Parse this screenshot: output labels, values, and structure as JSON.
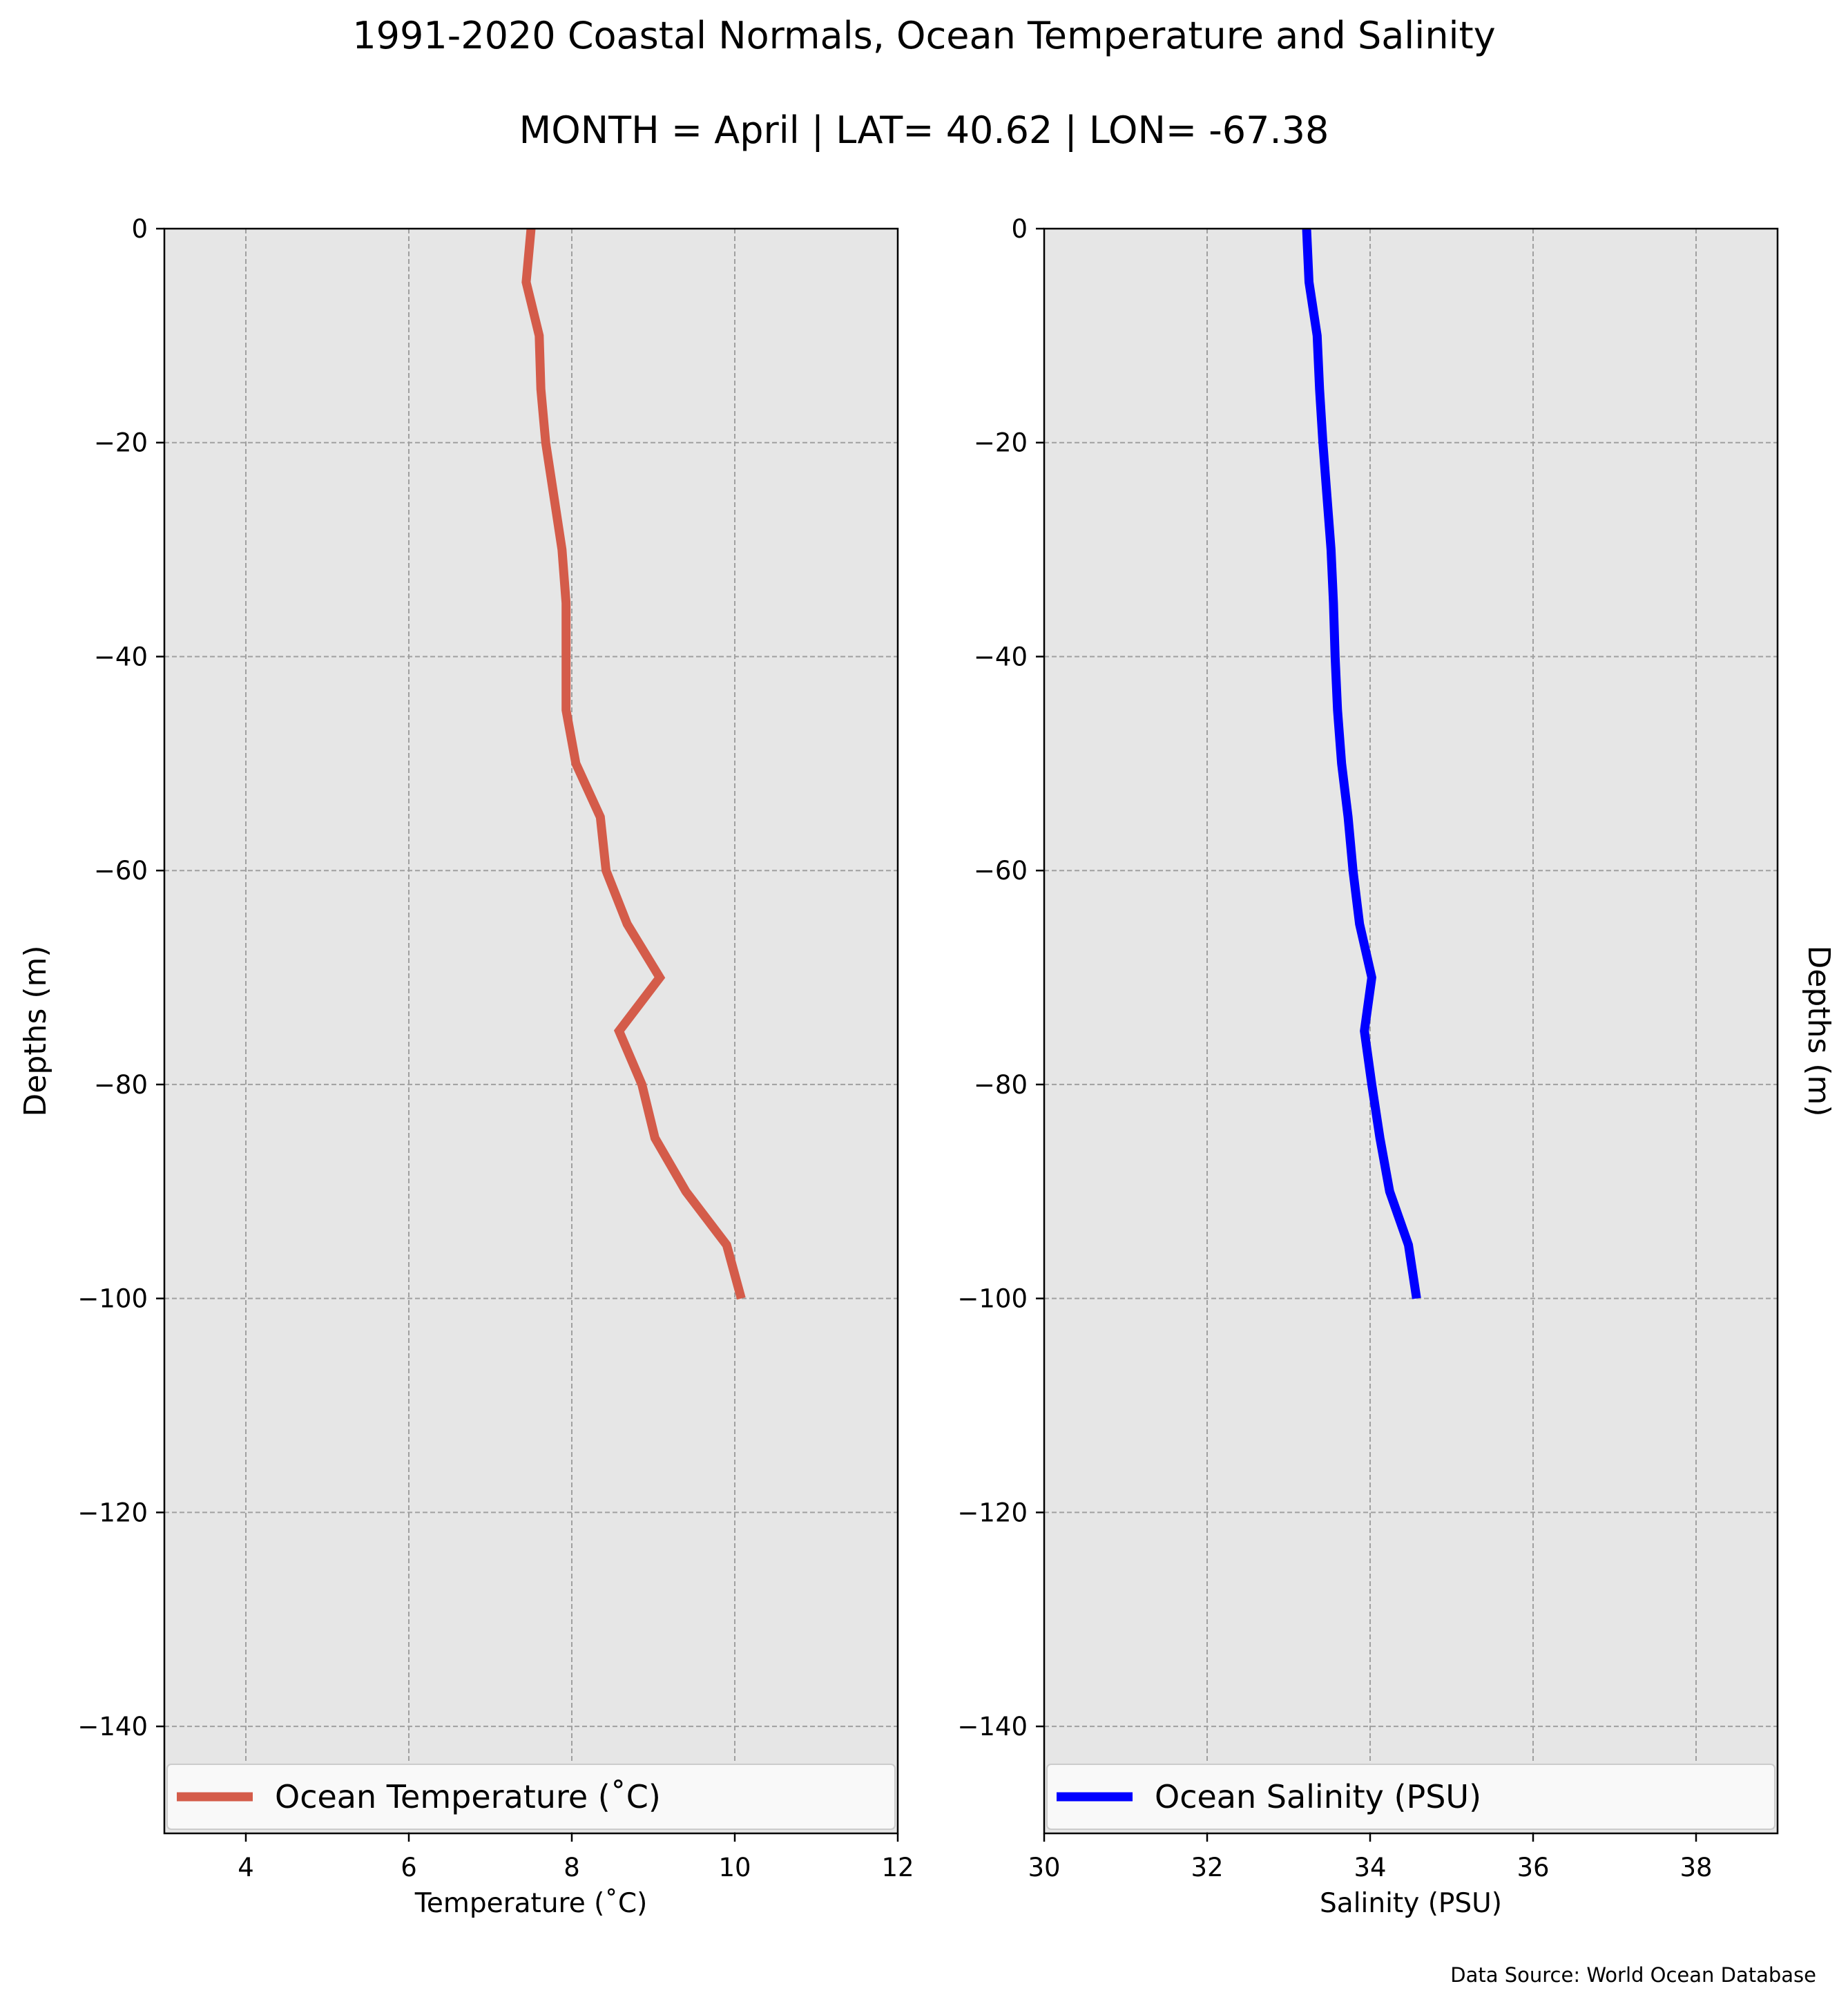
{
  "title": "1991-2020 Coastal Normals, Ocean Temperature and Salinity",
  "subtitle": "MONTH = April | LAT= 40.62 | LON= -67.38",
  "source": "Data Source: World Ocean Database",
  "chart_data": [
    {
      "type": "line",
      "panel": "left",
      "xlabel": "Temperature (˚C)",
      "ylabel": "Depths (m)",
      "xlim": [
        3,
        12
      ],
      "ylim": [
        -150,
        0
      ],
      "xticks": [
        4,
        6,
        8,
        10,
        12
      ],
      "yticks": [
        0,
        -20,
        -40,
        -60,
        -80,
        -100,
        -120,
        -140
      ],
      "grid": true,
      "legend": "lower center",
      "background": "#e6e6e6",
      "series": [
        {
          "name": "Ocean Temperature (˚C)",
          "color": "#d45c4a",
          "points": [
            [
              7.5,
              0
            ],
            [
              7.44,
              -5
            ],
            [
              7.6,
              -10
            ],
            [
              7.62,
              -15
            ],
            [
              7.68,
              -20
            ],
            [
              7.78,
              -25
            ],
            [
              7.88,
              -30
            ],
            [
              7.93,
              -35
            ],
            [
              7.93,
              -40
            ],
            [
              7.93,
              -45
            ],
            [
              8.05,
              -50
            ],
            [
              8.35,
              -55
            ],
            [
              8.42,
              -60
            ],
            [
              8.68,
              -65
            ],
            [
              9.08,
              -70
            ],
            [
              8.58,
              -75
            ],
            [
              8.86,
              -80
            ],
            [
              9.02,
              -85
            ],
            [
              9.4,
              -90
            ],
            [
              9.9,
              -95
            ],
            [
              10.08,
              -100
            ]
          ]
        }
      ]
    },
    {
      "type": "line",
      "panel": "right",
      "xlabel": "Salinity (PSU)",
      "ylabel": "Depths (m)",
      "xlim": [
        30,
        39
      ],
      "ylim": [
        -150,
        0
      ],
      "xticks": [
        30,
        32,
        34,
        36,
        38
      ],
      "yticks": [
        0,
        -20,
        -40,
        -60,
        -80,
        -100,
        -120,
        -140
      ],
      "grid": true,
      "legend": "lower center",
      "background": "#e6e6e6",
      "series": [
        {
          "name": "Ocean Salinity (PSU)",
          "color": "#0000ff",
          "points": [
            [
              33.22,
              0
            ],
            [
              33.25,
              -5
            ],
            [
              33.35,
              -10
            ],
            [
              33.38,
              -15
            ],
            [
              33.42,
              -20
            ],
            [
              33.47,
              -25
            ],
            [
              33.52,
              -30
            ],
            [
              33.55,
              -35
            ],
            [
              33.57,
              -40
            ],
            [
              33.6,
              -45
            ],
            [
              33.65,
              -50
            ],
            [
              33.73,
              -55
            ],
            [
              33.79,
              -60
            ],
            [
              33.87,
              -65
            ],
            [
              34.02,
              -70
            ],
            [
              33.93,
              -75
            ],
            [
              34.02,
              -80
            ],
            [
              34.12,
              -85
            ],
            [
              34.24,
              -90
            ],
            [
              34.47,
              -95
            ],
            [
              34.57,
              -100
            ]
          ]
        }
      ]
    }
  ]
}
